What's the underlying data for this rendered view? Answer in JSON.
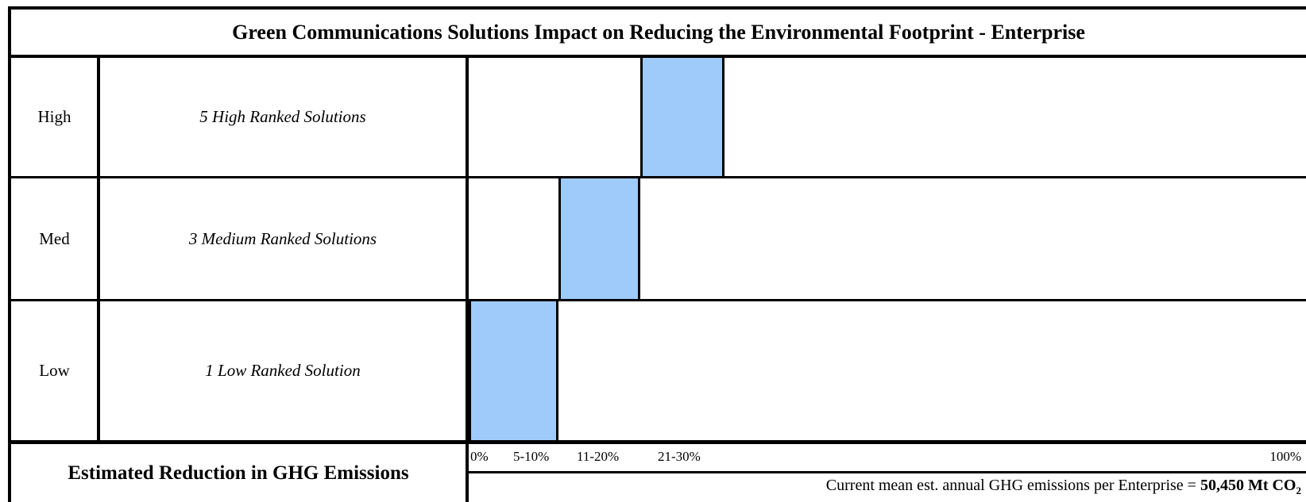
{
  "title": "Green Communications Solutions Impact on Reducing the Environmental Footprint - Enterprise",
  "chart_data": {
    "type": "bar",
    "title": "Green Communications Solutions Impact on Reducing the Environmental Footprint - Enterprise",
    "xlabel": "Estimated Reduction in GHG Emissions",
    "x_ticks": [
      "0%",
      "5-10%",
      "11-20%",
      "21-30%",
      "100%"
    ],
    "rows": [
      {
        "rank": "High",
        "solutions": "5 High Ranked Solutions",
        "band": "21-30%",
        "color": "#9ecbfa"
      },
      {
        "rank": "Med",
        "solutions": "3 Medium Ranked Solutions",
        "band": "11-20%",
        "color": "#9ecbfa"
      },
      {
        "rank": "Low",
        "solutions": "1 Low Ranked Solution",
        "band": "5-10%",
        "color": "#9ecbfa"
      }
    ]
  },
  "footer": {
    "note_prefix": "Current mean est. annual GHG emissions per Enterprise = ",
    "note_value": "50,450 Mt CO",
    "note_sub": "2"
  }
}
